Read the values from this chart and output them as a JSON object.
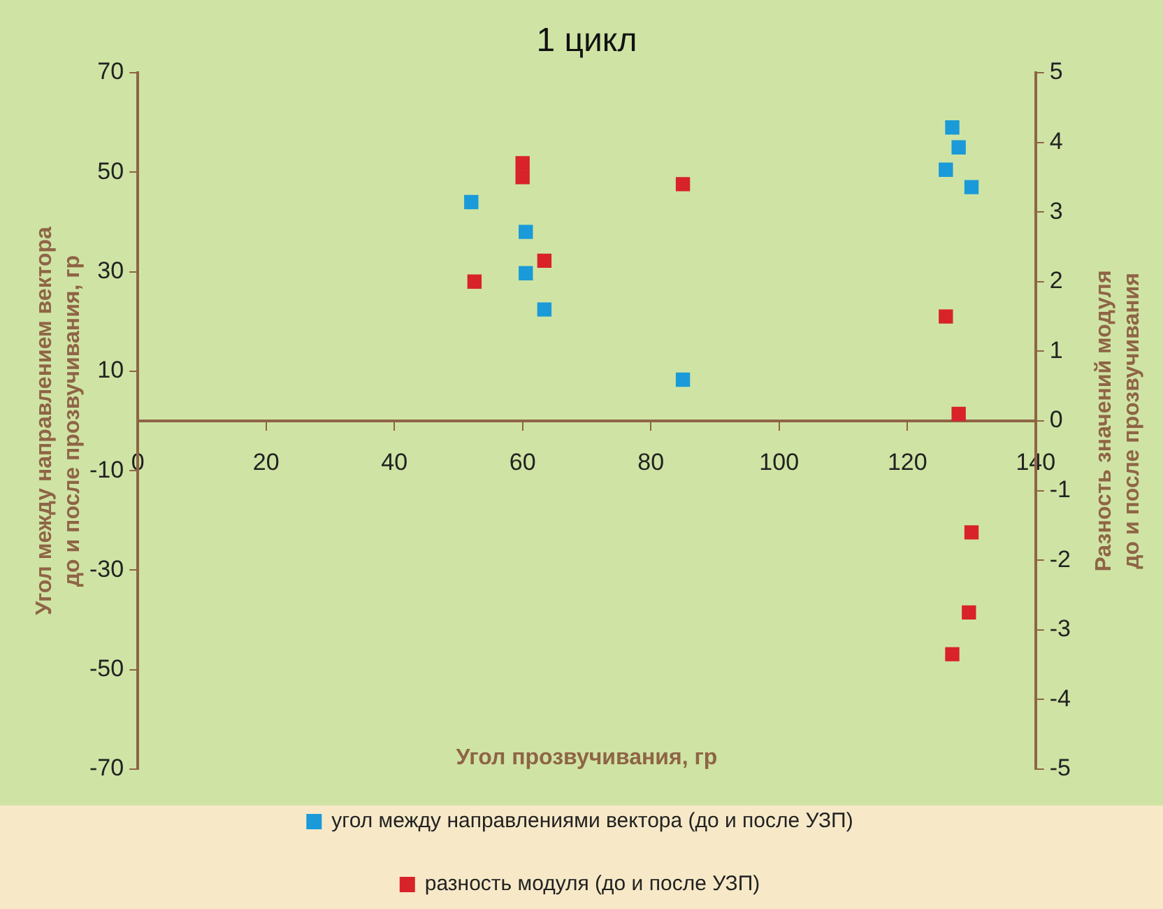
{
  "chart_data": {
    "type": "scatter",
    "title": "1 цикл",
    "xlabel": "Угол прозвучивания, гр",
    "ylabel": "Угол между направлением вектора до и после прозвучивания, гр",
    "y2label": "Разность значений модуля до и после прозвучивания",
    "xlim": [
      0,
      140
    ],
    "xticks": [
      0,
      20,
      40,
      60,
      80,
      100,
      120,
      140
    ],
    "ylim": [
      -70,
      70
    ],
    "yticks": [
      -70,
      -50,
      -30,
      -10,
      10,
      30,
      50,
      70
    ],
    "y2lim": [
      -5,
      5
    ],
    "y2ticks": [
      -5,
      -4,
      -3,
      -2,
      -1,
      0,
      1,
      2,
      3,
      4,
      5
    ],
    "grid": false,
    "legend": "bottom",
    "marker": "square",
    "series": [
      {
        "name": "угол между направлениями вектора (до и после УЗП)",
        "color": "#1a9ad9",
        "x": [
          52,
          60.5,
          60.5,
          63.4,
          85,
          127,
          128,
          126,
          130
        ],
        "values": [
          44,
          38,
          29.7,
          22.4,
          8.3,
          59,
          55,
          50.5,
          47
        ]
      },
      {
        "name": "разность модуля (до и после УЗП)",
        "color": "#d8232a",
        "axis": "y2",
        "x": [
          60,
          60,
          85,
          63.4,
          52.5,
          126,
          128,
          130,
          129.6,
          127
        ],
        "values": [
          3.7,
          3.5,
          3.4,
          2.3,
          2.0,
          1.5,
          0.1,
          -1.6,
          -2.75,
          -3.35
        ]
      }
    ]
  }
}
